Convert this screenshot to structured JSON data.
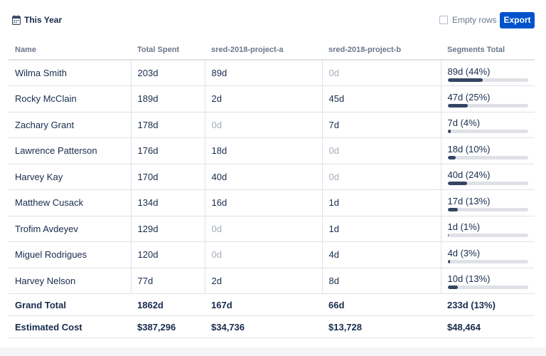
{
  "toolbar": {
    "period_label": "This Year",
    "period_icon": "calendar-icon",
    "empty_rows_label": "Empty rows",
    "empty_rows_checked": false,
    "export_label": "Export",
    "accent_color": "#0052cc"
  },
  "table": {
    "columns": [
      "Name",
      "Total Spent",
      "sred-2018-project-a",
      "sred-2018-project-b",
      "Segments Total"
    ],
    "rows": [
      {
        "name": "Wilma Smith",
        "total": "203d",
        "a": "89d",
        "b": "0d",
        "seg": "89d (44%)",
        "pct": 0.44
      },
      {
        "name": "Rocky McClain",
        "total": "189d",
        "a": "2d",
        "b": "45d",
        "seg": "47d (25%)",
        "pct": 0.25
      },
      {
        "name": "Zachary Grant",
        "total": "178d",
        "a": "0d",
        "b": "7d",
        "seg": "7d (4%)",
        "pct": 0.04
      },
      {
        "name": "Lawrence Patterson",
        "total": "176d",
        "a": "18d",
        "b": "0d",
        "seg": "18d (10%)",
        "pct": 0.1
      },
      {
        "name": "Harvey Kay",
        "total": "170d",
        "a": "40d",
        "b": "0d",
        "seg": "40d (24%)",
        "pct": 0.24
      },
      {
        "name": "Matthew Cusack",
        "total": "134d",
        "a": "16d",
        "b": "1d",
        "seg": "17d (13%)",
        "pct": 0.13
      },
      {
        "name": "Trofim Avdeyev",
        "total": "129d",
        "a": "0d",
        "b": "1d",
        "seg": "1d (1%)",
        "pct": 0.01
      },
      {
        "name": "Miguel Rodrigues",
        "total": "120d",
        "a": "0d",
        "b": "4d",
        "seg": "4d (3%)",
        "pct": 0.03
      },
      {
        "name": "Harvey Nelson",
        "total": "77d",
        "a": "2d",
        "b": "8d",
        "seg": "10d (13%)",
        "pct": 0.13
      }
    ],
    "grand_total": {
      "label": "Grand Total",
      "total": "1862d",
      "a": "167d",
      "b": "66d",
      "seg": "233d (13%)"
    },
    "estimated_cost": {
      "label": "Estimated Cost",
      "total": "$387,296",
      "a": "$34,736",
      "b": "$13,728",
      "seg": "$48,464"
    }
  }
}
